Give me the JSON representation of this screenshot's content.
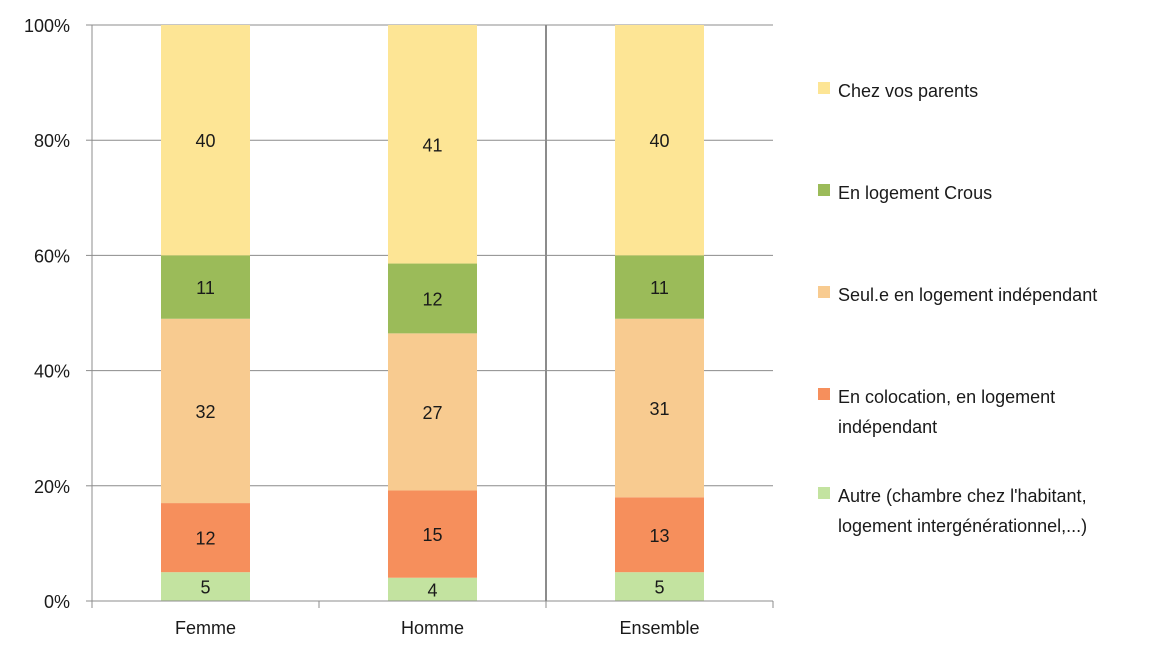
{
  "chart_data": {
    "type": "bar",
    "stacked": true,
    "percent": true,
    "categories": [
      "Femme",
      "Homme",
      "Ensemble"
    ],
    "ylim": [
      0,
      100
    ],
    "yticks": [
      "0%",
      "20%",
      "40%",
      "60%",
      "80%",
      "100%"
    ],
    "grid": true,
    "legend_position": "right",
    "series": [
      {
        "name": "Autre (chambre chez l'habitant,\nlogement intergénérationnel,...)",
        "color": "#c3e3a0",
        "values": [
          5,
          4,
          5
        ]
      },
      {
        "name": "En colocation, en logement\nindépendant",
        "color": "#f68f5c",
        "values": [
          12,
          15,
          13
        ]
      },
      {
        "name": "Seul.e en logement indépendant",
        "color": "#f8cb90",
        "values": [
          32,
          27,
          31
        ]
      },
      {
        "name": "En logement Crous",
        "color": "#9bbb59",
        "values": [
          11,
          12,
          11
        ]
      },
      {
        "name": "Chez vos parents",
        "color": "#fde595",
        "values": [
          40,
          41,
          40
        ]
      }
    ]
  }
}
